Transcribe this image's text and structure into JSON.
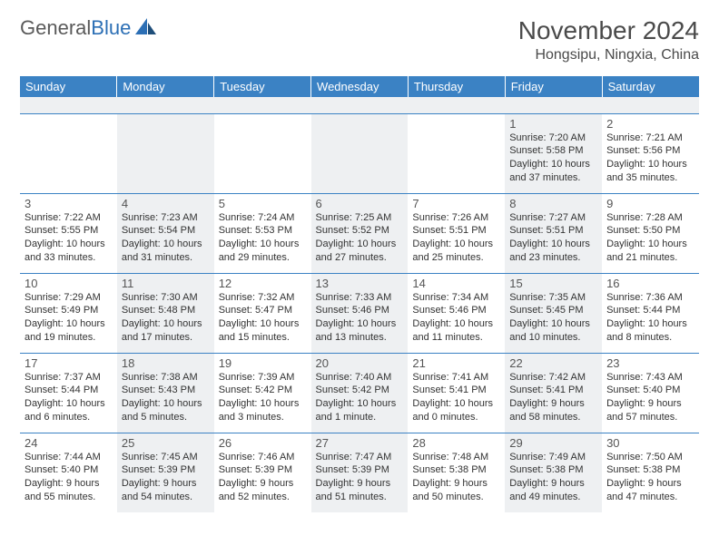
{
  "brand": {
    "name_gray": "General",
    "name_blue": "Blue"
  },
  "title": {
    "month": "November 2024",
    "location": "Hongsipu, Ningxia, China"
  },
  "colors": {
    "header_bg": "#3b82c4",
    "header_text": "#ffffff",
    "row_border": "#3b82c4",
    "alt_bg": "#eef0f2",
    "brand_gray": "#5a5a5a",
    "brand_blue": "#2c6fb5"
  },
  "day_headers": [
    "Sunday",
    "Monday",
    "Tuesday",
    "Wednesday",
    "Thursday",
    "Friday",
    "Saturday"
  ],
  "weeks": [
    [
      null,
      null,
      null,
      null,
      null,
      {
        "n": "1",
        "sr": "Sunrise: 7:20 AM",
        "ss": "Sunset: 5:58 PM",
        "d1": "Daylight: 10 hours",
        "d2": "and 37 minutes."
      },
      {
        "n": "2",
        "sr": "Sunrise: 7:21 AM",
        "ss": "Sunset: 5:56 PM",
        "d1": "Daylight: 10 hours",
        "d2": "and 35 minutes."
      }
    ],
    [
      {
        "n": "3",
        "sr": "Sunrise: 7:22 AM",
        "ss": "Sunset: 5:55 PM",
        "d1": "Daylight: 10 hours",
        "d2": "and 33 minutes."
      },
      {
        "n": "4",
        "sr": "Sunrise: 7:23 AM",
        "ss": "Sunset: 5:54 PM",
        "d1": "Daylight: 10 hours",
        "d2": "and 31 minutes."
      },
      {
        "n": "5",
        "sr": "Sunrise: 7:24 AM",
        "ss": "Sunset: 5:53 PM",
        "d1": "Daylight: 10 hours",
        "d2": "and 29 minutes."
      },
      {
        "n": "6",
        "sr": "Sunrise: 7:25 AM",
        "ss": "Sunset: 5:52 PM",
        "d1": "Daylight: 10 hours",
        "d2": "and 27 minutes."
      },
      {
        "n": "7",
        "sr": "Sunrise: 7:26 AM",
        "ss": "Sunset: 5:51 PM",
        "d1": "Daylight: 10 hours",
        "d2": "and 25 minutes."
      },
      {
        "n": "8",
        "sr": "Sunrise: 7:27 AM",
        "ss": "Sunset: 5:51 PM",
        "d1": "Daylight: 10 hours",
        "d2": "and 23 minutes."
      },
      {
        "n": "9",
        "sr": "Sunrise: 7:28 AM",
        "ss": "Sunset: 5:50 PM",
        "d1": "Daylight: 10 hours",
        "d2": "and 21 minutes."
      }
    ],
    [
      {
        "n": "10",
        "sr": "Sunrise: 7:29 AM",
        "ss": "Sunset: 5:49 PM",
        "d1": "Daylight: 10 hours",
        "d2": "and 19 minutes."
      },
      {
        "n": "11",
        "sr": "Sunrise: 7:30 AM",
        "ss": "Sunset: 5:48 PM",
        "d1": "Daylight: 10 hours",
        "d2": "and 17 minutes."
      },
      {
        "n": "12",
        "sr": "Sunrise: 7:32 AM",
        "ss": "Sunset: 5:47 PM",
        "d1": "Daylight: 10 hours",
        "d2": "and 15 minutes."
      },
      {
        "n": "13",
        "sr": "Sunrise: 7:33 AM",
        "ss": "Sunset: 5:46 PM",
        "d1": "Daylight: 10 hours",
        "d2": "and 13 minutes."
      },
      {
        "n": "14",
        "sr": "Sunrise: 7:34 AM",
        "ss": "Sunset: 5:46 PM",
        "d1": "Daylight: 10 hours",
        "d2": "and 11 minutes."
      },
      {
        "n": "15",
        "sr": "Sunrise: 7:35 AM",
        "ss": "Sunset: 5:45 PM",
        "d1": "Daylight: 10 hours",
        "d2": "and 10 minutes."
      },
      {
        "n": "16",
        "sr": "Sunrise: 7:36 AM",
        "ss": "Sunset: 5:44 PM",
        "d1": "Daylight: 10 hours",
        "d2": "and 8 minutes."
      }
    ],
    [
      {
        "n": "17",
        "sr": "Sunrise: 7:37 AM",
        "ss": "Sunset: 5:44 PM",
        "d1": "Daylight: 10 hours",
        "d2": "and 6 minutes."
      },
      {
        "n": "18",
        "sr": "Sunrise: 7:38 AM",
        "ss": "Sunset: 5:43 PM",
        "d1": "Daylight: 10 hours",
        "d2": "and 5 minutes."
      },
      {
        "n": "19",
        "sr": "Sunrise: 7:39 AM",
        "ss": "Sunset: 5:42 PM",
        "d1": "Daylight: 10 hours",
        "d2": "and 3 minutes."
      },
      {
        "n": "20",
        "sr": "Sunrise: 7:40 AM",
        "ss": "Sunset: 5:42 PM",
        "d1": "Daylight: 10 hours",
        "d2": "and 1 minute."
      },
      {
        "n": "21",
        "sr": "Sunrise: 7:41 AM",
        "ss": "Sunset: 5:41 PM",
        "d1": "Daylight: 10 hours",
        "d2": "and 0 minutes."
      },
      {
        "n": "22",
        "sr": "Sunrise: 7:42 AM",
        "ss": "Sunset: 5:41 PM",
        "d1": "Daylight: 9 hours",
        "d2": "and 58 minutes."
      },
      {
        "n": "23",
        "sr": "Sunrise: 7:43 AM",
        "ss": "Sunset: 5:40 PM",
        "d1": "Daylight: 9 hours",
        "d2": "and 57 minutes."
      }
    ],
    [
      {
        "n": "24",
        "sr": "Sunrise: 7:44 AM",
        "ss": "Sunset: 5:40 PM",
        "d1": "Daylight: 9 hours",
        "d2": "and 55 minutes."
      },
      {
        "n": "25",
        "sr": "Sunrise: 7:45 AM",
        "ss": "Sunset: 5:39 PM",
        "d1": "Daylight: 9 hours",
        "d2": "and 54 minutes."
      },
      {
        "n": "26",
        "sr": "Sunrise: 7:46 AM",
        "ss": "Sunset: 5:39 PM",
        "d1": "Daylight: 9 hours",
        "d2": "and 52 minutes."
      },
      {
        "n": "27",
        "sr": "Sunrise: 7:47 AM",
        "ss": "Sunset: 5:39 PM",
        "d1": "Daylight: 9 hours",
        "d2": "and 51 minutes."
      },
      {
        "n": "28",
        "sr": "Sunrise: 7:48 AM",
        "ss": "Sunset: 5:38 PM",
        "d1": "Daylight: 9 hours",
        "d2": "and 50 minutes."
      },
      {
        "n": "29",
        "sr": "Sunrise: 7:49 AM",
        "ss": "Sunset: 5:38 PM",
        "d1": "Daylight: 9 hours",
        "d2": "and 49 minutes."
      },
      {
        "n": "30",
        "sr": "Sunrise: 7:50 AM",
        "ss": "Sunset: 5:38 PM",
        "d1": "Daylight: 9 hours",
        "d2": "and 47 minutes."
      }
    ]
  ]
}
